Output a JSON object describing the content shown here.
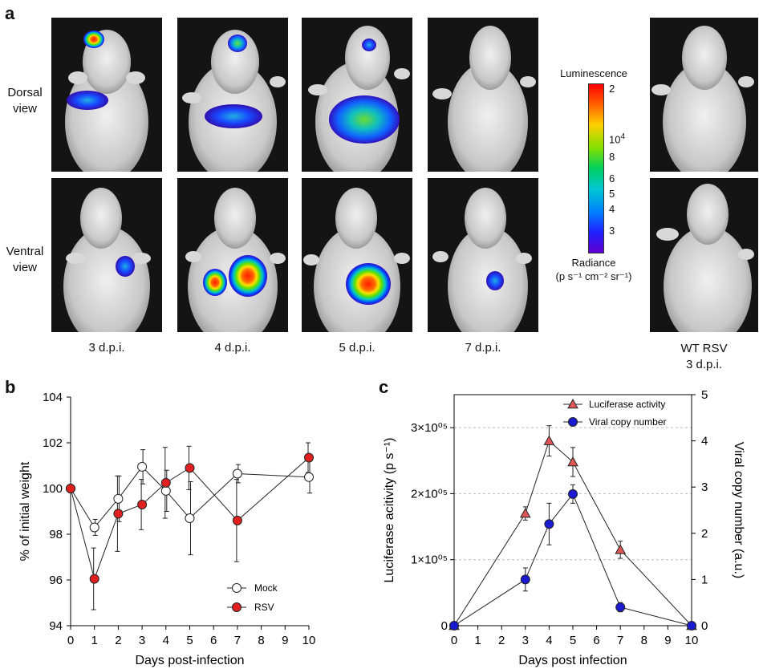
{
  "panels": {
    "a": {
      "letter": "a",
      "row_labels": {
        "dorsal": "Dorsal\nview",
        "ventral": "Ventral\nview"
      },
      "day_labels": [
        "3 d.p.i.",
        "4 d.p.i.",
        "5 d.p.i.",
        "7 d.p.i."
      ],
      "wt_label": "WT RSV\n3 d.p.i.",
      "colorbar": {
        "title": "Luminescence",
        "top_value": "2",
        "mid_exponent_label": "10",
        "mid_exponent_sup": "4",
        "ticks": [
          "8",
          "6",
          "5",
          "4",
          "3"
        ],
        "bottom_label_1": "Radiance",
        "bottom_label_2": "(p s⁻¹ cm⁻² sr⁻¹)"
      }
    },
    "b": {
      "letter": "b"
    },
    "c": {
      "letter": "c"
    }
  },
  "chart_data": [
    {
      "id": "b",
      "type": "line",
      "title": "",
      "xlabel": "Days post-infection",
      "ylabel": "% of initial weight",
      "xlim": [
        0,
        10
      ],
      "ylim": [
        94,
        104
      ],
      "xticks": [
        0,
        1,
        2,
        3,
        4,
        5,
        6,
        7,
        8,
        9,
        10
      ],
      "yticks": [
        94,
        96,
        98,
        100,
        102,
        104
      ],
      "legend": "bottom-right",
      "series": [
        {
          "name": "Mock",
          "marker": "open-circle",
          "color": "#ffffff",
          "x": [
            0,
            1,
            2,
            3,
            4,
            5,
            7,
            10
          ],
          "y": [
            100.0,
            98.3,
            99.55,
            100.95,
            99.9,
            98.7,
            100.65,
            100.5
          ],
          "err": [
            0.0,
            0.35,
            1.0,
            0.75,
            0.9,
            1.6,
            0.4,
            0.7
          ]
        },
        {
          "name": "RSV",
          "marker": "filled-circle",
          "color": "#e02020",
          "x": [
            0,
            1,
            2,
            3,
            4,
            5,
            7,
            10
          ],
          "y": [
            100.0,
            96.05,
            98.9,
            99.3,
            100.25,
            100.9,
            98.6,
            101.35
          ],
          "err": [
            0.0,
            1.35,
            1.65,
            1.1,
            1.55,
            0.95,
            1.8,
            0.65
          ]
        }
      ]
    },
    {
      "id": "c",
      "type": "line",
      "title": "",
      "xlabel": "Days post infection",
      "ylabel_left": "Luciferase acitivity (p s⁻¹)",
      "ylabel_right": "Viral copy number (a.u.)",
      "xlim": [
        0,
        10
      ],
      "ylim_left": [
        0,
        350000
      ],
      "ylim_right": [
        0,
        5
      ],
      "xticks": [
        0,
        1,
        2,
        3,
        4,
        5,
        6,
        7,
        8,
        9,
        10
      ],
      "yticks_left": [
        "0",
        "1×10⁰⁵",
        "2×10⁰⁵",
        "3×10⁰⁵"
      ],
      "yticks_left_values": [
        0,
        100000,
        200000,
        300000
      ],
      "yticks_right": [
        0,
        1,
        2,
        3,
        4,
        5
      ],
      "gridlines_left": [
        100000,
        200000,
        300000
      ],
      "legend": "top-right",
      "series": [
        {
          "name": "Luciferase activity",
          "axis": "left",
          "marker": "triangle",
          "color": "#e05555",
          "x": [
            0,
            3,
            4,
            5,
            7,
            10
          ],
          "y": [
            0,
            170000,
            280000,
            248000,
            115000,
            0
          ],
          "err": [
            0,
            10000,
            23000,
            22000,
            13000,
            0
          ]
        },
        {
          "name": "Viral copy number",
          "axis": "right",
          "marker": "circle",
          "color": "#1a1ad0",
          "x": [
            0,
            3,
            4,
            5,
            7,
            10
          ],
          "y": [
            0,
            1.0,
            2.2,
            2.85,
            0.4,
            0
          ],
          "err": [
            0,
            0.25,
            0.45,
            0.2,
            0.1,
            0
          ]
        }
      ]
    }
  ]
}
